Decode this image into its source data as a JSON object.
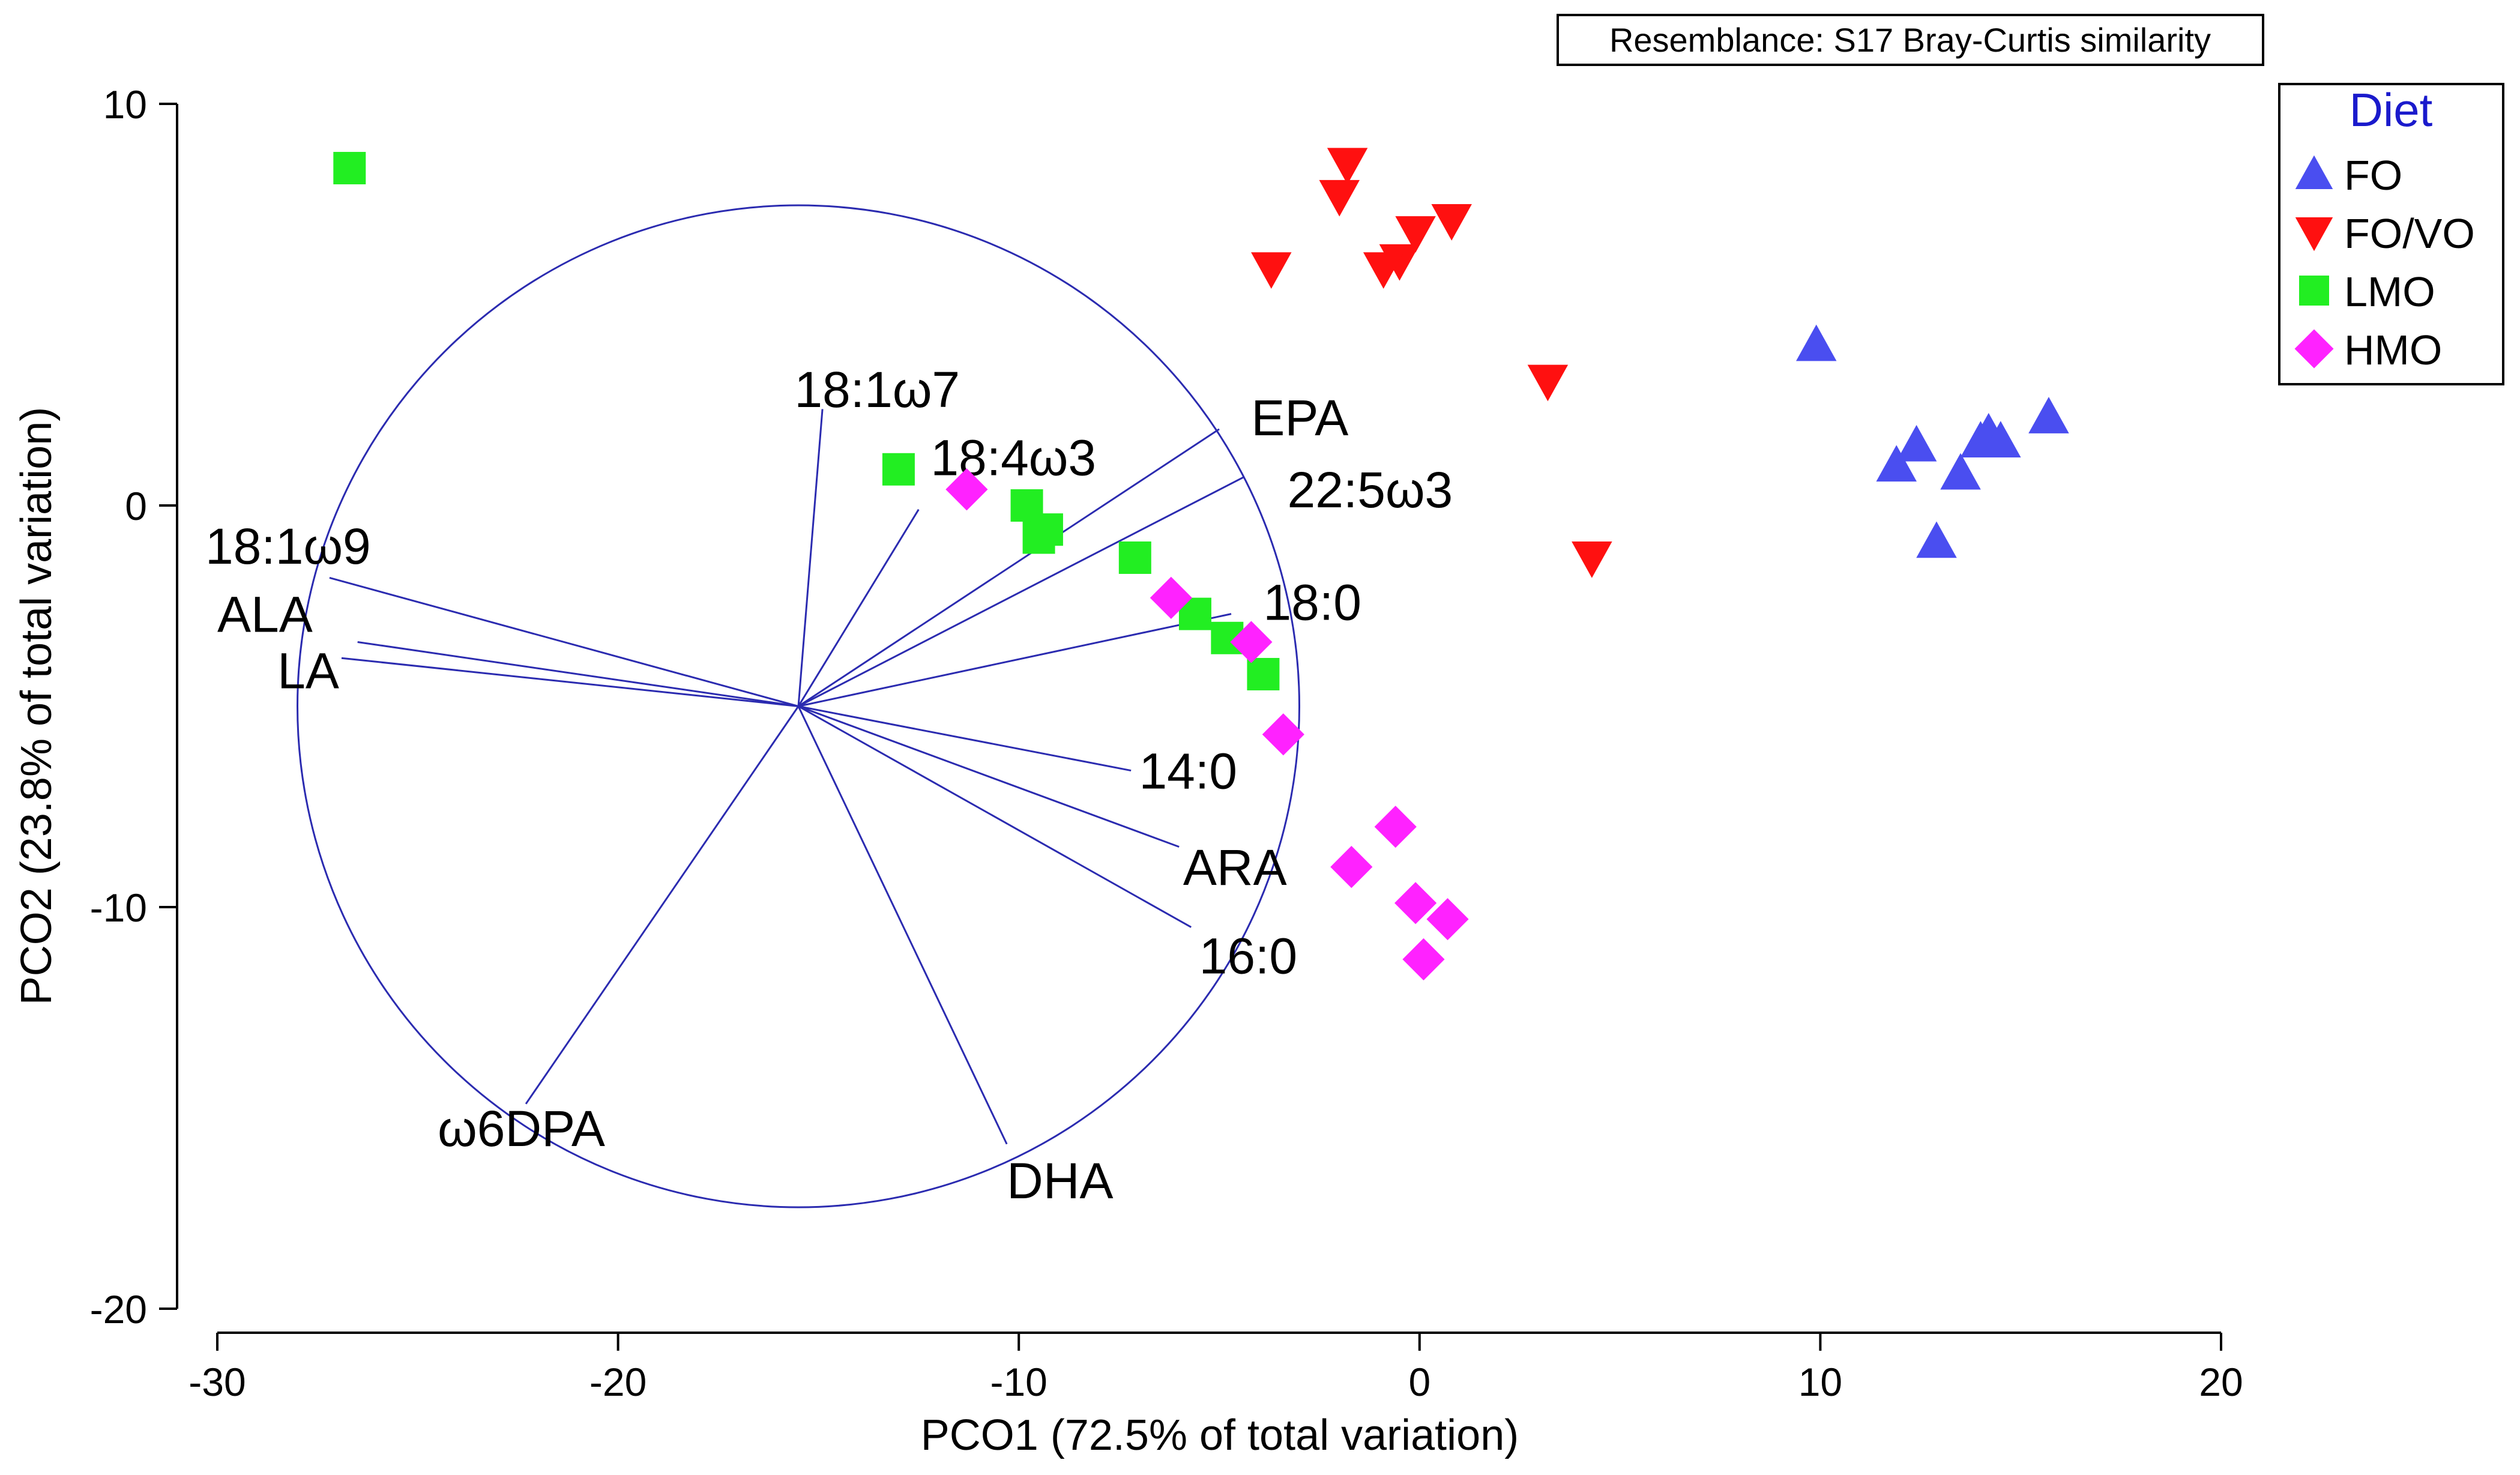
{
  "chart_data": {
    "type": "scatter",
    "title": "",
    "xlabel": "PCO1 (72.5% of total variation)",
    "ylabel": "PCO2 (23.8% of total variation)",
    "xlim": [
      -30,
      20
    ],
    "ylim": [
      -20,
      10
    ],
    "xticks": [
      -30,
      -20,
      -10,
      0,
      10,
      20
    ],
    "yticks": [
      -20,
      -10,
      0,
      10
    ],
    "xtick_labels": [
      "-30",
      "-20",
      "-10",
      "0",
      "10",
      "20"
    ],
    "ytick_labels": [
      "-20",
      "-10",
      "0",
      "10"
    ],
    "resemblance_note": "Resemblance: S17 Bray-Curtis similarity",
    "legend": {
      "title": "Diet",
      "entries": [
        "FO",
        "FO/VO",
        "LMO",
        "HMO"
      ]
    },
    "colors": {
      "FO": "#4a4ef0",
      "FO/VO": "#ff1010",
      "LMO": "#22ee22",
      "HMO": "#ff22ff",
      "axes": "#000000",
      "vectors": "#2b2bb0",
      "legend_title": "#1a1acc"
    },
    "series": [
      {
        "name": "FO",
        "marker": "triangle-up",
        "points": [
          [
            9.9,
            4.0
          ],
          [
            11.9,
            1.0
          ],
          [
            12.4,
            1.5
          ],
          [
            13.5,
            0.8
          ],
          [
            14.0,
            1.6
          ],
          [
            14.2,
            1.8
          ],
          [
            14.5,
            1.6
          ],
          [
            15.7,
            2.2
          ],
          [
            12.9,
            -0.9
          ]
        ]
      },
      {
        "name": "FO/VO",
        "marker": "triangle-down",
        "points": [
          [
            -1.8,
            8.5
          ],
          [
            -2.0,
            7.7
          ],
          [
            0.8,
            7.1
          ],
          [
            -0.1,
            6.8
          ],
          [
            -0.5,
            6.1
          ],
          [
            -0.9,
            5.9
          ],
          [
            -3.7,
            5.9
          ],
          [
            3.2,
            3.1
          ],
          [
            4.3,
            -1.3
          ]
        ]
      },
      {
        "name": "LMO",
        "marker": "square",
        "points": [
          [
            -26.7,
            8.4
          ],
          [
            -13.0,
            0.9
          ],
          [
            -9.8,
            0.0
          ],
          [
            -9.3,
            -0.6
          ],
          [
            -9.5,
            -0.8
          ],
          [
            -7.1,
            -1.3
          ],
          [
            -5.6,
            -2.7
          ],
          [
            -4.8,
            -3.3
          ],
          [
            -3.9,
            -4.2
          ]
        ]
      },
      {
        "name": "HMO",
        "marker": "diamond",
        "points": [
          [
            -11.3,
            0.4
          ],
          [
            -6.2,
            -2.3
          ],
          [
            -4.2,
            -3.4
          ],
          [
            -3.4,
            -5.7
          ],
          [
            -0.6,
            -8.0
          ],
          [
            -1.7,
            -9.0
          ],
          [
            -0.1,
            -9.9
          ],
          [
            0.7,
            -10.3
          ],
          [
            0.1,
            -11.3
          ]
        ]
      }
    ],
    "vector_origin": [
      -15.5,
      -5.0
    ],
    "correlation_circle_radius": 12.5,
    "vectors": [
      {
        "label": "18:1ω7",
        "end": [
          -14.9,
          2.4
        ],
        "label_at": [
          -15.6,
          2.9
        ]
      },
      {
        "label": "18:4ω3",
        "end": [
          -12.5,
          -0.1
        ],
        "label_at": [
          -12.2,
          1.2
        ]
      },
      {
        "label": "EPA",
        "end": [
          -5.0,
          1.9
        ],
        "label_at": [
          -4.2,
          2.2
        ]
      },
      {
        "label": "22:5ω3",
        "end": [
          -4.4,
          0.7
        ],
        "label_at": [
          -3.3,
          0.4
        ]
      },
      {
        "label": "18:1ω9",
        "end": [
          -27.2,
          -1.8
        ],
        "label_at": [
          -30.3,
          -1.0
        ]
      },
      {
        "label": "ALA",
        "end": [
          -26.5,
          -3.4
        ],
        "label_at": [
          -30.0,
          -2.7
        ]
      },
      {
        "label": "LA",
        "end": [
          -26.9,
          -3.8
        ],
        "label_at": [
          -28.5,
          -4.1
        ]
      },
      {
        "label": "18:0",
        "end": [
          -4.7,
          -2.7
        ],
        "label_at": [
          -3.9,
          -2.4
        ]
      },
      {
        "label": "14:0",
        "end": [
          -7.2,
          -6.6
        ],
        "label_at": [
          -7.0,
          -6.6
        ]
      },
      {
        "label": "ARA",
        "end": [
          -6.0,
          -8.5
        ],
        "label_at": [
          -5.9,
          -9.0
        ]
      },
      {
        "label": "16:0",
        "end": [
          -5.7,
          -10.5
        ],
        "label_at": [
          -5.5,
          -11.2
        ]
      },
      {
        "label": "ω6DPA",
        "end": [
          -22.3,
          -14.9
        ],
        "label_at": [
          -24.5,
          -15.5
        ]
      },
      {
        "label": "DHA",
        "end": [
          -10.3,
          -15.9
        ],
        "label_at": [
          -10.3,
          -16.8
        ]
      }
    ]
  }
}
